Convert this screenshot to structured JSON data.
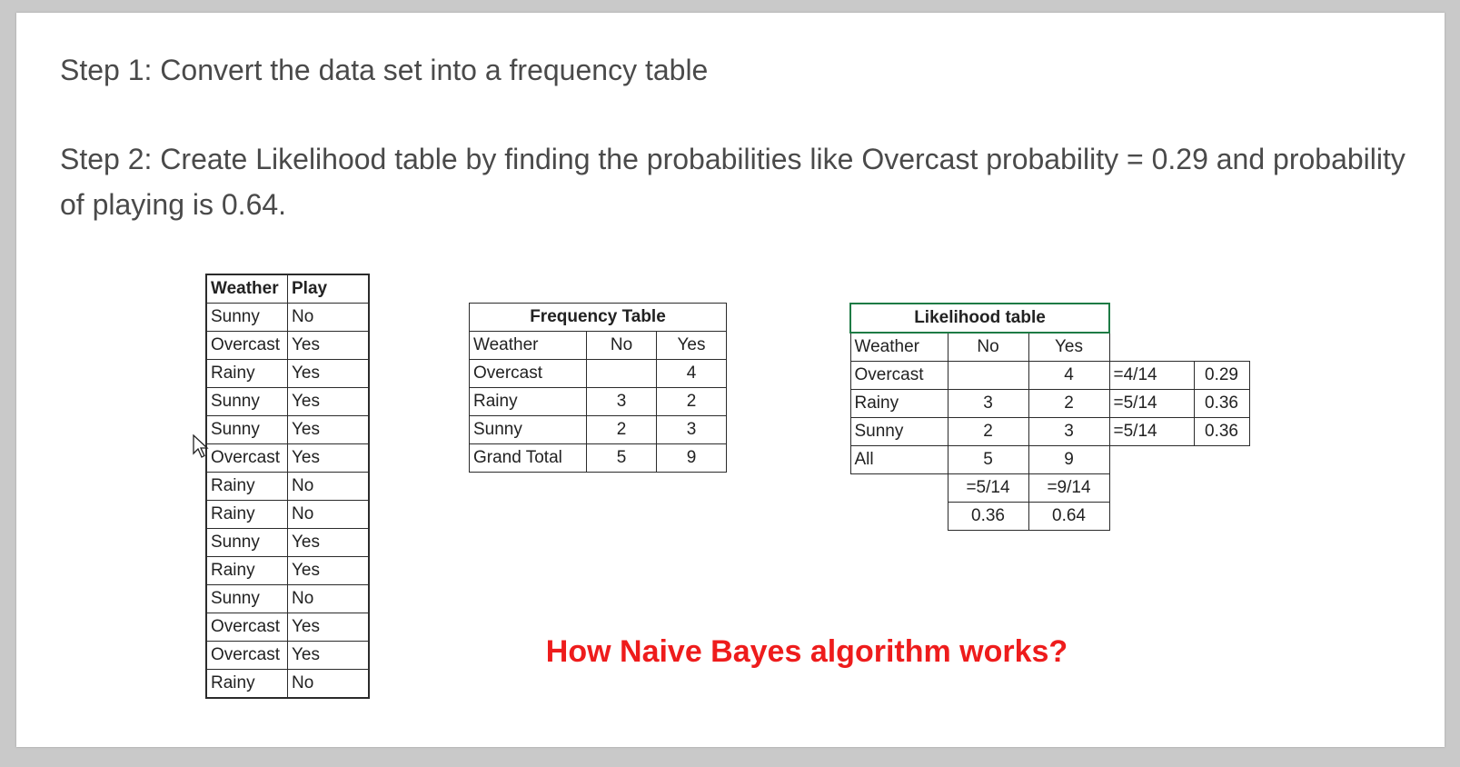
{
  "steps": {
    "step1": "Step 1: Convert the data set into a frequency table",
    "step2": "Step 2: Create Likelihood table by finding the probabilities like Overcast probability = 0.29 and probability of playing is 0.64."
  },
  "raw_table": {
    "headers": [
      "Weather",
      "Play"
    ],
    "rows": [
      [
        "Sunny",
        "No"
      ],
      [
        "Overcast",
        "Yes"
      ],
      [
        "Rainy",
        "Yes"
      ],
      [
        "Sunny",
        "Yes"
      ],
      [
        "Sunny",
        "Yes"
      ],
      [
        "Overcast",
        "Yes"
      ],
      [
        "Rainy",
        "No"
      ],
      [
        "Rainy",
        "No"
      ],
      [
        "Sunny",
        "Yes"
      ],
      [
        "Rainy",
        "Yes"
      ],
      [
        "Sunny",
        "No"
      ],
      [
        "Overcast",
        "Yes"
      ],
      [
        "Overcast",
        "Yes"
      ],
      [
        "Rainy",
        "No"
      ]
    ]
  },
  "frequency_table": {
    "title": "Frequency Table",
    "headers": [
      "Weather",
      "No",
      "Yes"
    ],
    "rows": [
      [
        "Overcast",
        "",
        "4"
      ],
      [
        "Rainy",
        "3",
        "2"
      ],
      [
        "Sunny",
        "2",
        "3"
      ],
      [
        "Grand Total",
        "5",
        "9"
      ]
    ]
  },
  "likelihood_table": {
    "title": "Likelihood table",
    "headers": [
      "Weather",
      "No",
      "Yes"
    ],
    "rows": [
      [
        "Overcast",
        "",
        "4",
        "=4/14",
        "0.29"
      ],
      [
        "Rainy",
        "3",
        "2",
        "=5/14",
        "0.36"
      ],
      [
        "Sunny",
        "2",
        "3",
        "=5/14",
        "0.36"
      ],
      [
        "All",
        "5",
        "9"
      ]
    ],
    "fraction_row": [
      "=5/14",
      "=9/14"
    ],
    "probability_row": [
      "0.36",
      "0.64"
    ]
  },
  "caption": "How Naive Bayes algorithm works?"
}
